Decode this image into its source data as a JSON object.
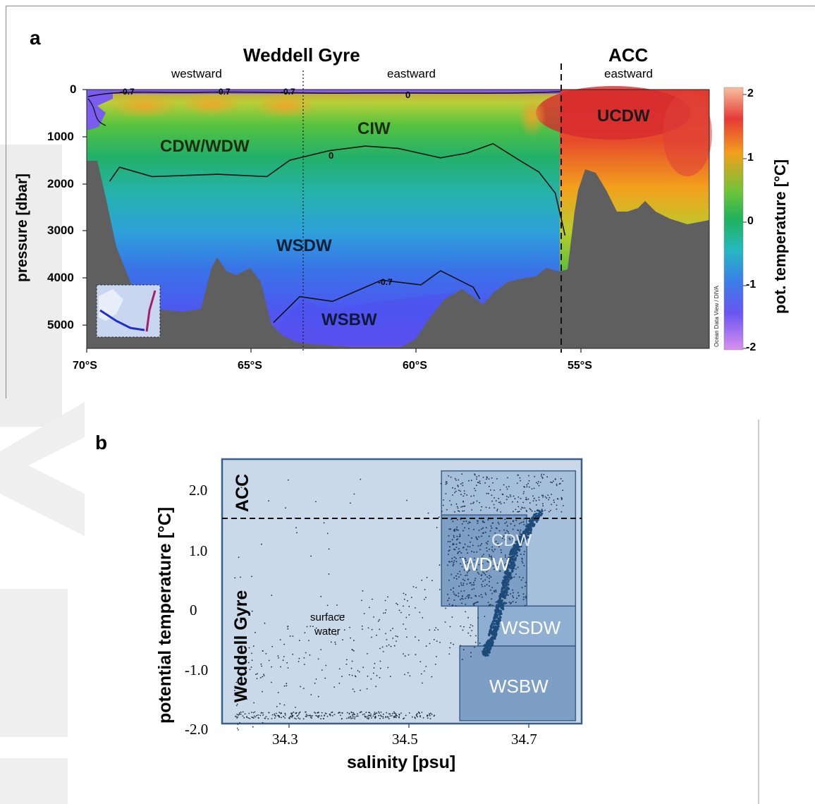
{
  "panel_a": {
    "letter": "a",
    "title_left": "Weddell Gyre",
    "title_right": "ACC",
    "subtitle_westward": "westward",
    "subtitle_eastward_wg": "eastward",
    "subtitle_eastward_acc": "eastward",
    "ylabel": "pressure [dbar]",
    "yticks": [
      "0",
      "1000",
      "2000",
      "3000",
      "4000",
      "5000"
    ],
    "xticks": [
      "70°S",
      "65°S",
      "60°S",
      "55°S"
    ],
    "colorbar_label": "pot. temperature [°C]",
    "colorbar_ticks": [
      "2",
      "1",
      "0",
      "-1",
      "-2"
    ],
    "credit": "Ocean Data View / DIVA",
    "water_masses": [
      "CDW/WDW",
      "CIW",
      "UCDW",
      "WSDW",
      "WSBW"
    ],
    "contour_labels": [
      "-0.7",
      "-0.7",
      "-0.7",
      "0",
      "0",
      "-0.7"
    ],
    "colors": {
      "bathymetry": "#5f5f5f",
      "cold": "#7b5cf0",
      "warm": "#d8262a"
    }
  },
  "chart_data": [
    {
      "type": "heatmap",
      "title": "Weddell Gyre / ACC",
      "xlabel": "",
      "ylabel": "pressure [dbar]",
      "xlim": [
        -70,
        -51
      ],
      "ylim": [
        5500,
        0
      ],
      "x_ticks": [
        -70,
        -65,
        -60,
        -55
      ],
      "y_ticks": [
        0,
        1000,
        2000,
        3000,
        4000,
        5000
      ],
      "colorbar": {
        "label": "pot. temperature [°C]",
        "range": [
          -2,
          2.2
        ],
        "ticks": [
          2,
          1,
          0,
          -1,
          -2
        ]
      },
      "fronts": [
        {
          "lat": -63.4,
          "style": "dotted"
        },
        {
          "lat": -55.6,
          "style": "dashed"
        }
      ],
      "contours": [
        {
          "level": 0,
          "points": [
            [
              -69.3,
              1950
            ],
            [
              -69,
              1650
            ],
            [
              -68,
              1850
            ],
            [
              -66,
              1800
            ],
            [
              -64.5,
              1850
            ],
            [
              -63.8,
              1500
            ],
            [
              -62.6,
              1300
            ],
            [
              -61.5,
              1200
            ],
            [
              -60.5,
              1250
            ],
            [
              -59.2,
              1450
            ],
            [
              -58.4,
              1350
            ],
            [
              -57.6,
              1150
            ],
            [
              -56.8,
              1500
            ],
            [
              -56.2,
              1750
            ],
            [
              -55.7,
              2200
            ],
            [
              -55.4,
              3100
            ]
          ]
        },
        {
          "level": -0.7,
          "points": [
            [
              -64.3,
              4950
            ],
            [
              -63.5,
              4400
            ],
            [
              -62.5,
              4500
            ],
            [
              -61,
              4050
            ],
            [
              -59.8,
              4150
            ],
            [
              -59.2,
              3850
            ],
            [
              -58.2,
              4200
            ],
            [
              -58,
              4450
            ]
          ]
        }
      ],
      "annotations": [
        {
          "text": "CDW/WDW",
          "lat": -66.3,
          "p": 1200
        },
        {
          "text": "CIW",
          "lat": -61.2,
          "p": 850
        },
        {
          "text": "UCDW",
          "lat": -53.6,
          "p": 600
        },
        {
          "text": "WSDW",
          "lat": -63.2,
          "p": 3350
        },
        {
          "text": "WSBW",
          "lat": -61.1,
          "p": 4900
        }
      ]
    },
    {
      "type": "scatter",
      "title": "",
      "xlabel": "salinity [psu]",
      "ylabel": "potential temperature [°C]",
      "xlim": [
        34.2,
        34.79
      ],
      "ylim": [
        -2.0,
        2.5
      ],
      "x_ticks": [
        34.3,
        34.5,
        34.7
      ],
      "y_ticks": [
        2.0,
        1.0,
        0,
        -1.0,
        -2.0
      ],
      "front_line_y": 1.55,
      "regions": [
        {
          "name": "CDW",
          "s": [
            34.56,
            34.78
          ],
          "t": [
            0.0,
            2.3
          ]
        },
        {
          "name": "WDW",
          "s": [
            34.56,
            34.7
          ],
          "t": [
            0.0,
            1.55
          ]
        },
        {
          "name": "WSDW",
          "s": [
            34.62,
            34.78
          ],
          "t": [
            -0.68,
            0.0
          ]
        },
        {
          "name": "WSBW",
          "s": [
            34.59,
            34.78
          ],
          "t": [
            -1.95,
            -0.68
          ]
        }
      ],
      "labels": [
        "ACC",
        "Weddell Gyre",
        "surface water"
      ],
      "dense_core": [
        [
          34.63,
          -0.85
        ],
        [
          34.64,
          -0.6
        ],
        [
          34.65,
          -0.25
        ],
        [
          34.66,
          0.15
        ],
        [
          34.67,
          0.55
        ],
        [
          34.68,
          0.95
        ],
        [
          34.7,
          1.25
        ],
        [
          34.72,
          1.6
        ]
      ]
    }
  ],
  "panel_b": {
    "letter": "b",
    "xlabel": "salinity [psu]",
    "ylabel": "potential temperature [°C]",
    "xticks": [
      "34.3",
      "34.5",
      "34.7"
    ],
    "yticks": [
      "2.0",
      "1.0",
      "0",
      "-1.0",
      "-2.0"
    ],
    "label_acc": "ACC",
    "label_wg": "Weddell Gyre",
    "label_surface_1": "surface",
    "label_surface_2": "water",
    "box_cdw": "CDW",
    "box_wdw": "WDW",
    "box_wsdw": "WSDW",
    "box_wsbw": "WSBW"
  }
}
